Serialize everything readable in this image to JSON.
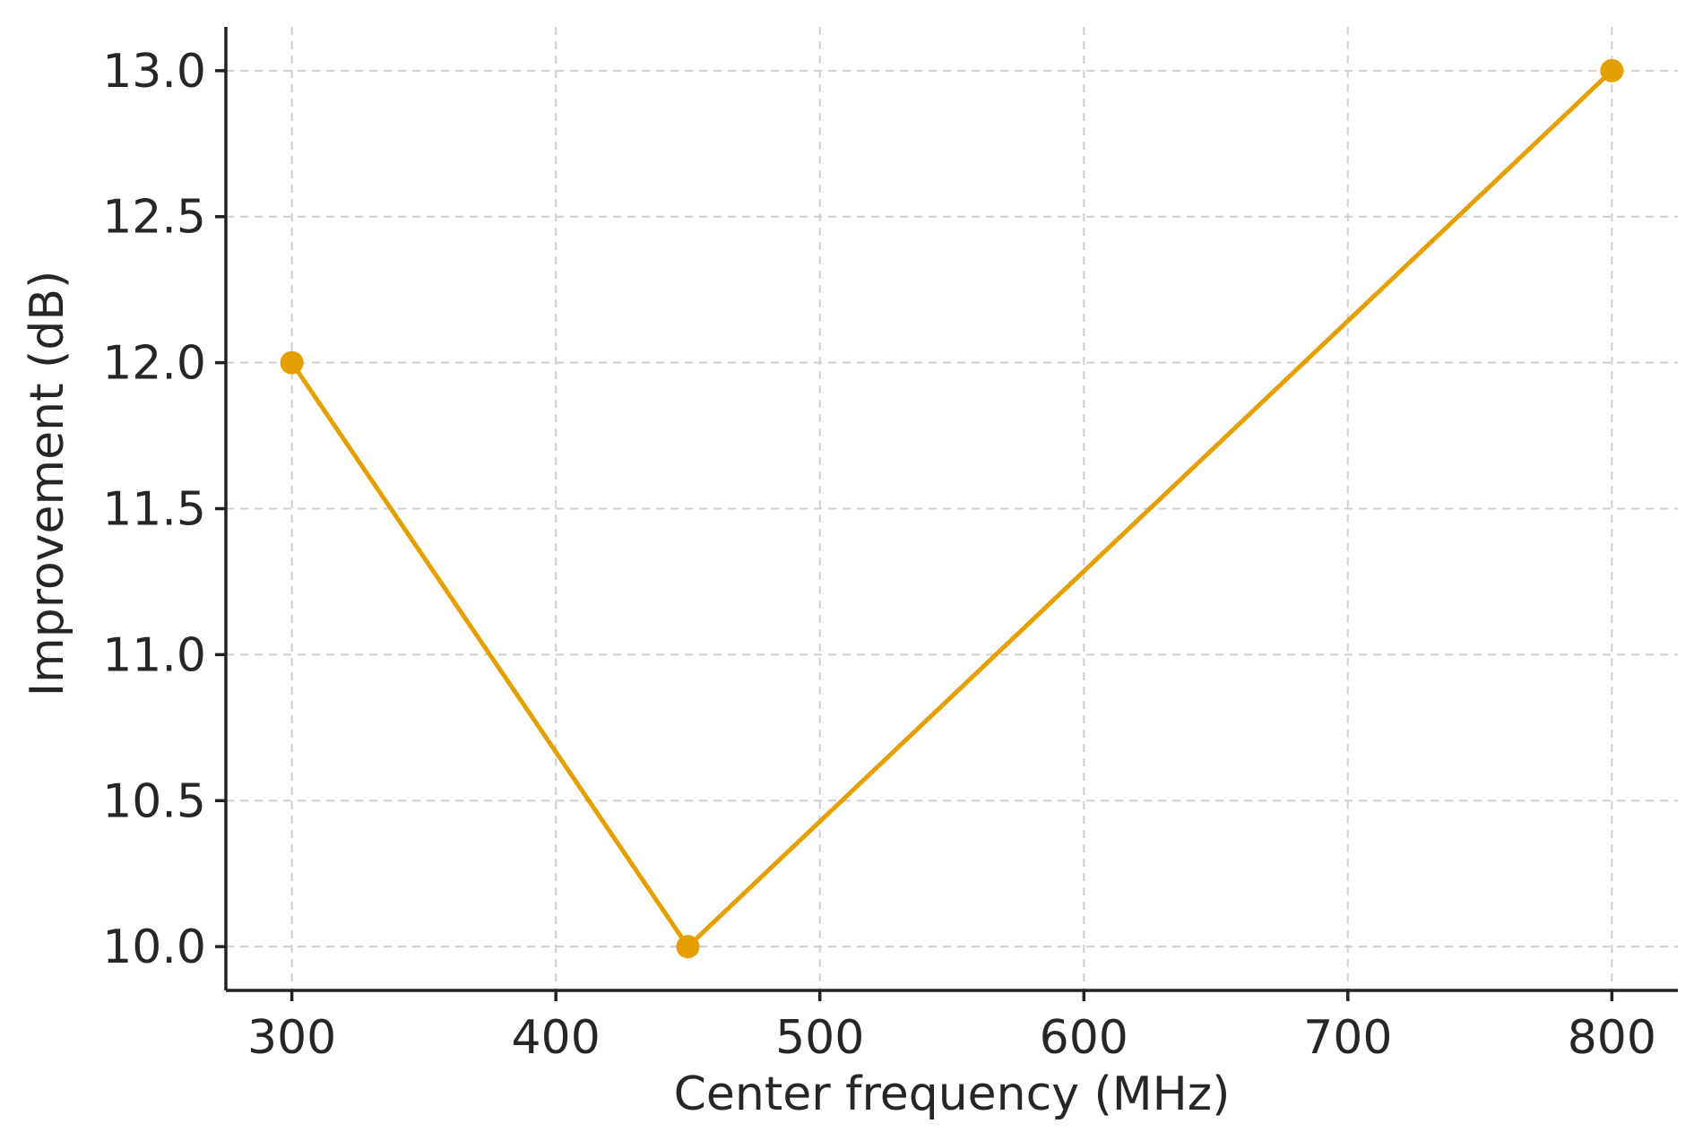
{
  "chart_data": {
    "type": "line",
    "title": "",
    "xlabel": "Center frequency (MHz)",
    "ylabel": "Improvement (dB)",
    "xlim": [
      275,
      825
    ],
    "ylim": [
      9.85,
      13.15
    ],
    "x_ticks": [
      300,
      400,
      500,
      600,
      700,
      800
    ],
    "x_tick_labels": [
      "300",
      "400",
      "500",
      "600",
      "700",
      "800"
    ],
    "y_ticks": [
      10.0,
      10.5,
      11.0,
      11.5,
      12.0,
      12.5,
      13.0
    ],
    "y_tick_labels": [
      "10.0",
      "10.5",
      "11.0",
      "11.5",
      "12.0",
      "12.5",
      "13.0"
    ],
    "grid": true,
    "series": [
      {
        "x": [
          300,
          450,
          800
        ],
        "y": [
          12.0,
          10.0,
          13.0
        ],
        "color": "#E69F00",
        "marker": "circle"
      }
    ]
  }
}
